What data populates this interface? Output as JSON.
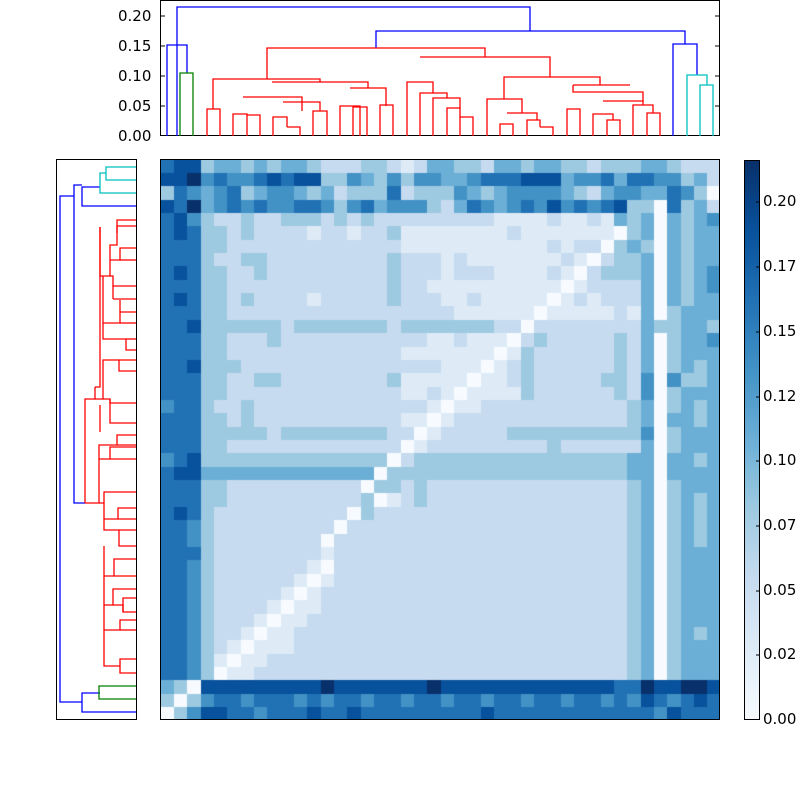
{
  "chart_data": {
    "type": "heatmap",
    "title": "",
    "description": "Clustered distance matrix heatmap with top and left dendrograms and a colorbar",
    "matrix_size": 42,
    "colormap": "Blues",
    "value_range": [
      0.0,
      0.215
    ],
    "colorbar": {
      "ticks": [
        "0.20",
        "0.17",
        "0.15",
        "0.12",
        "0.10",
        "0.07",
        "0.05",
        "0.02",
        "0.00"
      ],
      "tick_values": [
        0.2,
        0.175,
        0.15,
        0.125,
        0.1,
        0.075,
        0.05,
        0.025,
        0.0
      ],
      "colors": [
        "#f7fbff",
        "#deebf7",
        "#c6dbef",
        "#9ecae1",
        "#6baed6",
        "#4292c6",
        "#2171b5",
        "#08519c",
        "#08306b"
      ]
    },
    "top_dendrogram": {
      "yaxis_ticks": [
        "0.20",
        "0.15",
        "0.10",
        "0.05",
        "0.00"
      ],
      "tick_values": [
        0.2,
        0.15,
        0.1,
        0.05,
        0.0
      ],
      "ylim": [
        0.0,
        0.225
      ],
      "link_colors": {
        "root": "#0000ff",
        "cluster_red": "#ff0000",
        "cluster_green": "#008000",
        "cluster_cyan": "#00bfbf"
      }
    },
    "left_dendrogram": {
      "link_colors": {
        "root": "#0000ff",
        "cluster_red": "#ff0000",
        "cluster_green": "#008000",
        "cluster_cyan": "#00bfbf"
      }
    },
    "rows_levels": [
      "677344343443222332124433244344332333443222",
      "778565567677335435355445666777455646655342",
      "365456345543423336233354345555432455446530",
      "768456565566535645553246545657565673306342",
      "675322322333232322222222211112112143404345",
      "676332322221221223111111112111111103404344",
      "666332222222222222111111111112122034304344",
      "666322332222222223222121111111210233404344",
      "676332232222222223222122211112102333404345",
      "666332222222222223221111111111012222404345",
      "676332322221222223222112111110121222404344",
      "666332222222222222222211111101111121403444",
      "667333333233333332333333322022222222433443",
      "666332223222222222221121110232222232403445",
      "666332222222222222111111101322222232403444",
      "667333222222222222222111012322222232403434",
      "666332233222222223111110112322222332505334",
      "666332222222222222112101111322222232503444",
      "566322322222222222221011222222222223403434",
      "666332322222222222110122222222222223404434",
      "666333332333333332201222223333333333503444",
      "666332222222222222012222222223222222403444",
      "567333333333333330233333333333333334404434",
      "677444444444444403333333333333333334404444",
      "666332222222222033232222222222222223403444",
      "666332222222222301232222222222222223403434",
      "676322222222220322222222222222222223403434",
      "665322222222202222222222222222222223403434",
      "665322222222022222222222222222222223403434",
      "666322222222122222222222222222222223403444",
      "665322222221022222222222222222222223403444",
      "665322222210122222222222222222222223403444",
      "665322222101222222222222222222222223403444",
      "665322221011222222222222222222222223403444",
      "665322210112222222222222222222222223403444",
      "665322101122222222222222222222222223403434",
      "665321011122222222222222222222222223403444",
      "665310112222222222222222222222222223403444",
      "665301122222222222222222222222222223403444",
      "430777777777877777778777777777777766877887",
      "303566566656566566566566566566566565765676",
      "035776656667667666666666766666666666657666"
    ]
  }
}
